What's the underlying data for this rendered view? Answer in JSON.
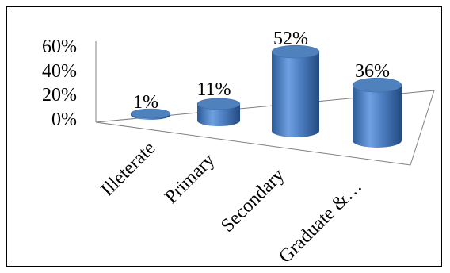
{
  "chart_data": {
    "type": "bar",
    "style": "3d-cylinder",
    "categories": [
      "Illeterate",
      "Primary",
      "Secondary",
      "Graduate &…"
    ],
    "values": [
      1,
      11,
      52,
      36
    ],
    "data_labels": [
      "1%",
      "11%",
      "52%",
      "36%"
    ],
    "y_ticks": [
      "0%",
      "20%",
      "40%",
      "60%"
    ],
    "ylim": [
      0,
      60
    ],
    "grid": false,
    "legend": "none",
    "colors": {
      "bar_top": "#4f81bd",
      "bar_side_light": "#6d9de0",
      "bar_side_dark": "#2e5c9a",
      "axis": "#808080"
    }
  }
}
